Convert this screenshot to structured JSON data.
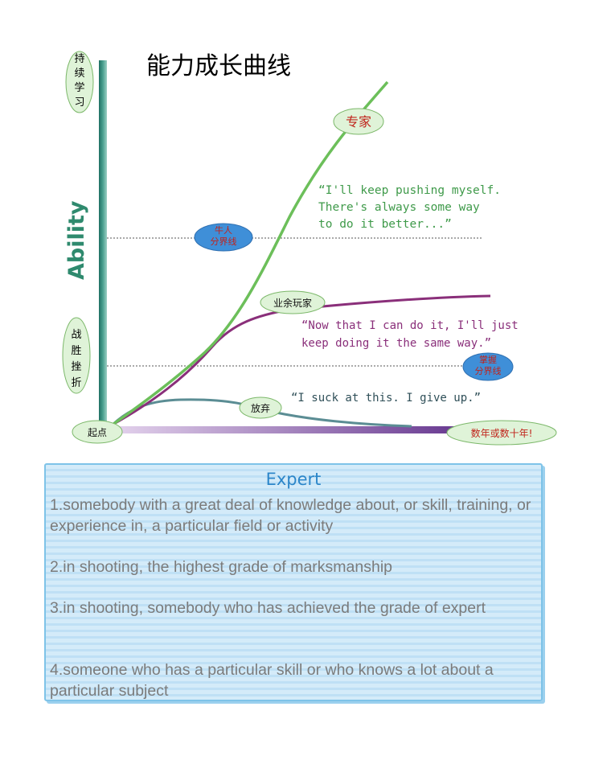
{
  "diagram": {
    "title": "能力成长曲线",
    "y_axis_label": "Ability",
    "side_labels": {
      "top": "持续学习",
      "bottom": "战胜挫折"
    },
    "nodes": {
      "start": "起点",
      "end": "数年或数十年!",
      "expert": "专家",
      "amateur": "业余玩家",
      "giveup": "放弃",
      "master_line": "牛人\n分界线",
      "grasp_line": "掌握\n分界线"
    },
    "quotes": {
      "expert_line1": "“I'll keep pushing myself.",
      "expert_line2": "There's always some way",
      "expert_line3": "to do it better...”",
      "amateur_line1": "“Now that I can do it, I'll just",
      "amateur_line2": "keep doing it the same way.”",
      "giveup": "“I suck at this. I give up.”"
    },
    "colors": {
      "expert_curve": "#6cbf5a",
      "amateur_curve": "#8a2f7a",
      "giveup_curve": "#5b8d94",
      "axis_y": "#2f8a7c",
      "axis_x": "#8e5aa8",
      "oval_green": "#dff3d8",
      "oval_blue": "#3f8fd8",
      "title_text": "#000000",
      "quote_text": "#3f9a4a"
    }
  },
  "card": {
    "title": "Expert",
    "definitions": [
      "1.somebody with a great deal of knowledge about, or skill, training, or experience in, a particular field or activity",
      "2.in shooting, the highest grade of marksmanship",
      "3.in shooting, somebody who has achieved the grade of expert",
      "4.someone who has a particular skill or who knows a lot about a particular subject"
    ]
  }
}
